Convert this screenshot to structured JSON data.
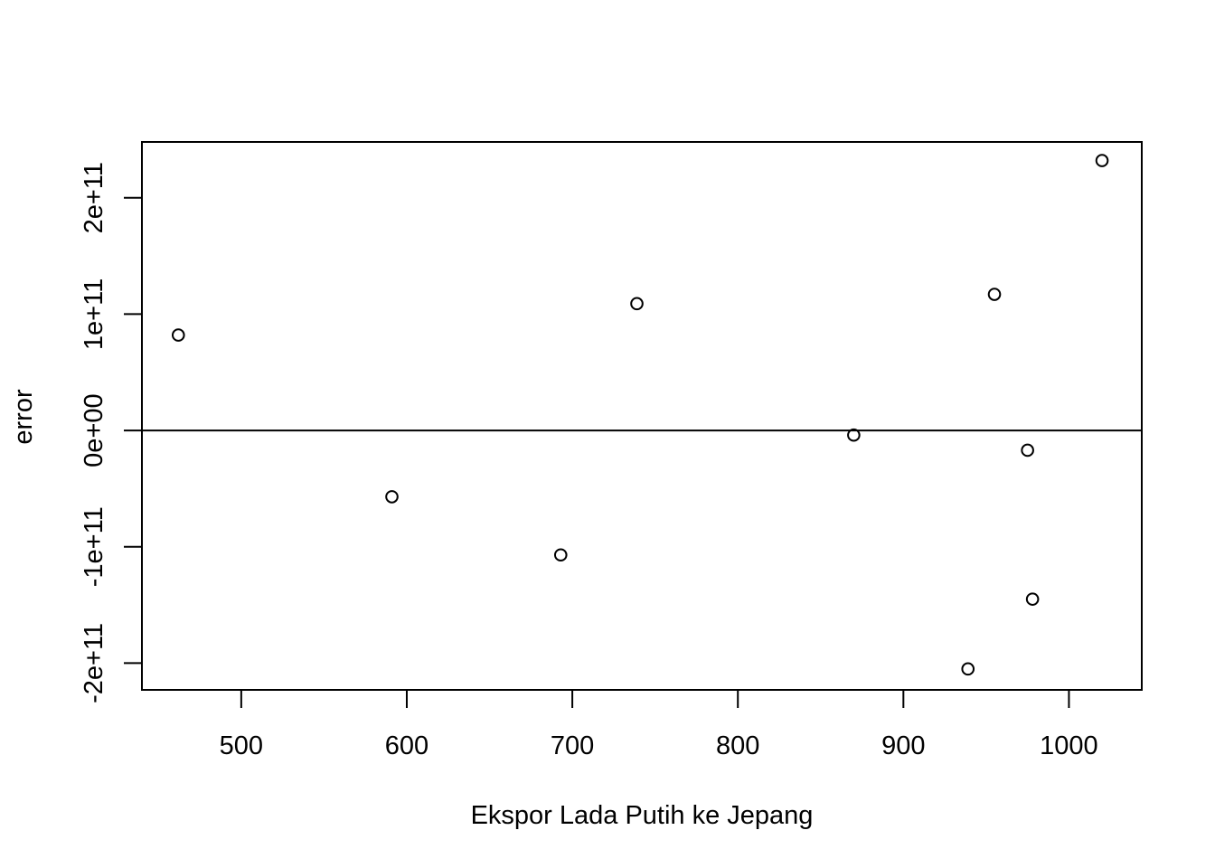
{
  "chart_data": {
    "type": "scatter",
    "title": "",
    "xlabel": "Ekspor Lada Putih ke Jepang",
    "ylabel": "error",
    "xlim": [
      440,
      1044
    ],
    "ylim": [
      -223000000000.0,
      248000000000.0
    ],
    "x_ticks": [
      500,
      600,
      700,
      800,
      900,
      1000
    ],
    "x_tick_labels": [
      "500",
      "600",
      "700",
      "800",
      "900",
      "1000"
    ],
    "y_ticks": [
      -200000000000.0,
      -100000000000.0,
      0,
      100000000000.0,
      200000000000.0
    ],
    "y_tick_labels": [
      "-2e+11",
      "-1e+11",
      "0e+00",
      "1e+11",
      "2e+11"
    ],
    "reference_line_y": 0,
    "grid": false,
    "marker": "open-circle",
    "colors": {
      "points": "#000000",
      "axes": "#000000",
      "background": "#ffffff"
    },
    "points": [
      {
        "x": 462,
        "y": 82000000000.0
      },
      {
        "x": 591,
        "y": -57000000000.0
      },
      {
        "x": 693,
        "y": -107000000000.0
      },
      {
        "x": 739,
        "y": 109000000000.0
      },
      {
        "x": 870,
        "y": -4000000000.0
      },
      {
        "x": 939,
        "y": -205000000000.0
      },
      {
        "x": 955,
        "y": 117000000000.0
      },
      {
        "x": 975,
        "y": -17000000000.0
      },
      {
        "x": 978,
        "y": -145000000000.0
      },
      {
        "x": 1020,
        "y": 232000000000.0
      }
    ]
  }
}
